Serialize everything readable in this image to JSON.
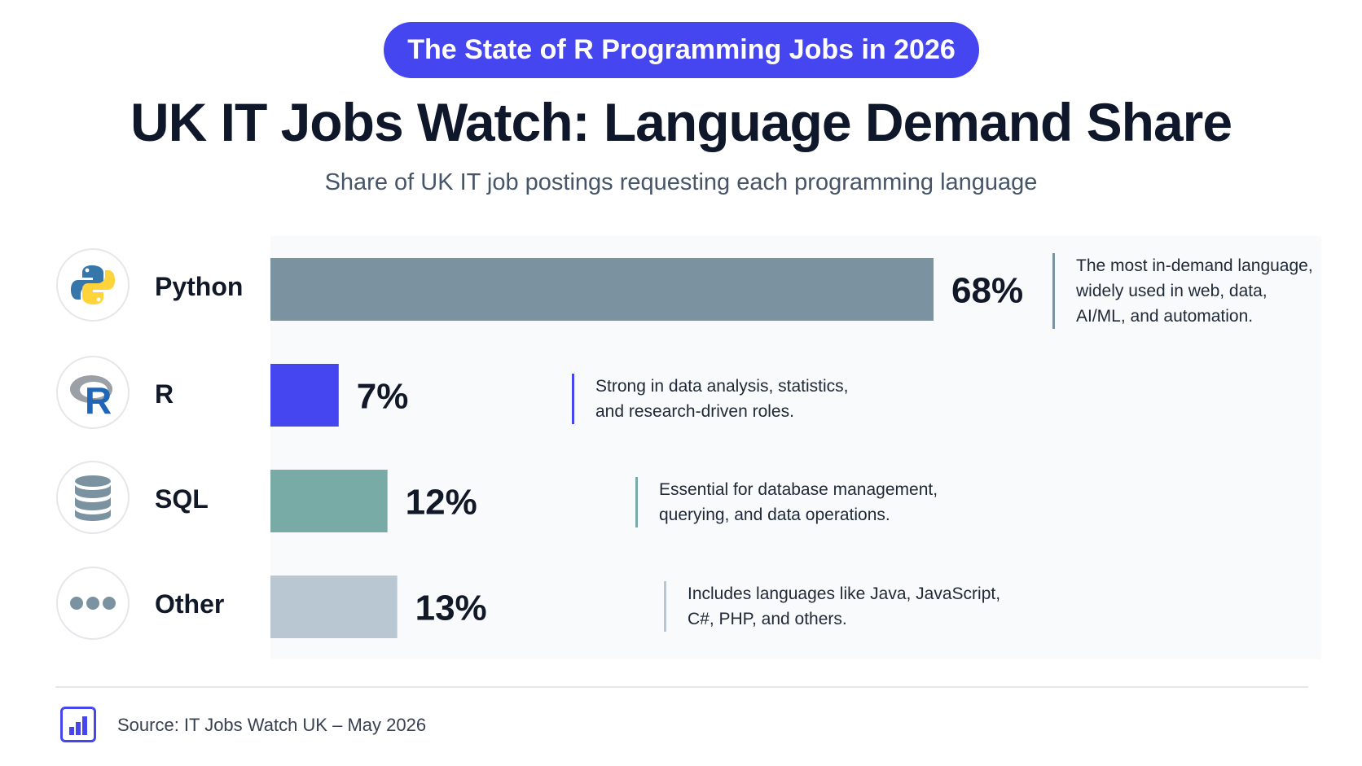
{
  "header": {
    "pill": "The State of R Programming Jobs in 2026",
    "title": "UK IT Jobs Watch: Language Demand Share",
    "subtitle": "Share of UK IT job postings requesting each programming language"
  },
  "chart_data": {
    "type": "bar",
    "orientation": "horizontal",
    "title": "UK IT Jobs Watch: Language Demand Share",
    "subtitle": "Share of UK IT job postings requesting each programming language",
    "xlim": [
      0,
      68
    ],
    "grid": false,
    "legend": "none",
    "categories": [
      "Python",
      "R",
      "SQL",
      "Other"
    ],
    "values": [
      68,
      7,
      12,
      13
    ],
    "value_labels": [
      "68%",
      "7%",
      "12%",
      "13%"
    ],
    "colors": [
      "#7b93a1",
      "#4646f0",
      "#78aaa6",
      "#b8c7d2"
    ],
    "icons": [
      "python-logo-icon",
      "r-logo-icon",
      "database-icon",
      "more-dots-icon"
    ],
    "annotations": [
      [
        "The most in-demand language,",
        "widely used in web, data,",
        "AI/ML, and automation."
      ],
      [
        "Strong in data analysis, statistics,",
        "and research-driven roles."
      ],
      [
        "Essential for database management,",
        "querying, and data operations."
      ],
      [
        "Includes languages like Java, JavaScript,",
        "C#, PHP, and others."
      ]
    ],
    "annotation_colors": [
      "#7b93a1",
      "#4646f0",
      "#78aaa6",
      "#b8c7d2"
    ]
  },
  "footer": {
    "source": "Source: IT Jobs Watch UK – May 2026"
  }
}
